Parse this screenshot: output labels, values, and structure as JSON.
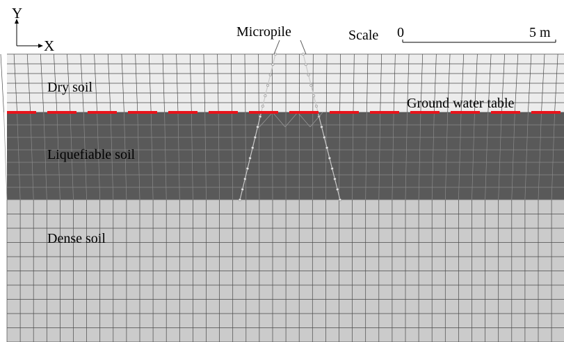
{
  "axes": {
    "y_label": "Y",
    "x_label": "X"
  },
  "pile": {
    "label": "Micropile"
  },
  "scale": {
    "label": "Scale",
    "start": "0",
    "end": "5 m"
  },
  "layers": [
    {
      "name": "Dry soil",
      "color": "#ececec"
    },
    {
      "name": "Liquefiable soil",
      "color": "#595959"
    },
    {
      "name": "Dense soil",
      "color": "#cbcbcb"
    }
  ],
  "water_table": {
    "label": "Ground water table",
    "color": "#e8141b"
  },
  "colors": {
    "mesh_line": "#4a4a4a",
    "mesh_line_dark": "#8a8a8a",
    "pile_node": "#e5e5e5"
  }
}
